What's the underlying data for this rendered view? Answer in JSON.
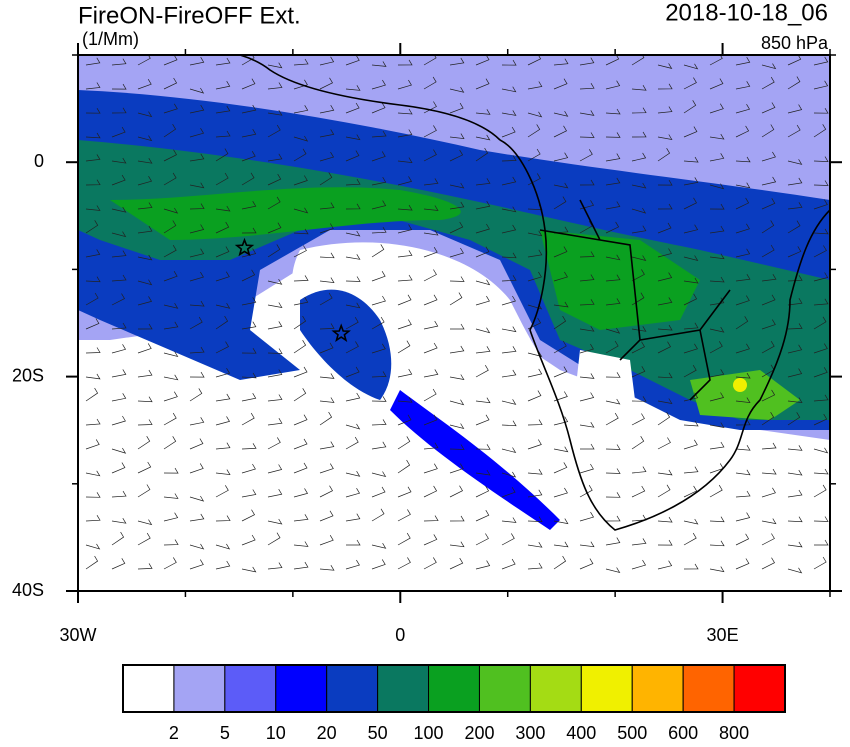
{
  "header": {
    "title": "FireON-FireOFF Ext.",
    "units": "(1/Mm)",
    "date": "2018-10-18_06",
    "level": "850 hPa"
  },
  "map": {
    "lonlim": [
      -30,
      40
    ],
    "latlim": [
      -40,
      10
    ],
    "lonticks": [
      {
        "value": -30,
        "label": "30W"
      },
      0,
      {
        "value": 30,
        "label": "30E"
      }
    ],
    "latticks": [
      0,
      {
        "value": -20,
        "label": "20S"
      },
      {
        "value": -40,
        "label": "40S"
      }
    ],
    "minor_lonticks": [
      -20,
      -10,
      10,
      20,
      40
    ],
    "minor_latticks": [
      10,
      -10,
      -30
    ],
    "markers": [
      {
        "lon": -14.5,
        "lat": -8
      },
      {
        "lon": -5.5,
        "lat": -16
      }
    ]
  },
  "colorbar": {
    "levels": [
      2,
      5,
      10,
      20,
      50,
      100,
      200,
      300,
      400,
      500,
      600,
      800
    ],
    "colors": [
      "#ffffff",
      "#a4a4f4",
      "#5c5cf8",
      "#0000ff",
      "#0a3cc0",
      "#0a7860",
      "#0aa020",
      "#50c020",
      "#a4dc14",
      "#f0f000",
      "#ffb400",
      "#ff6400",
      "#ff0000"
    ]
  }
}
